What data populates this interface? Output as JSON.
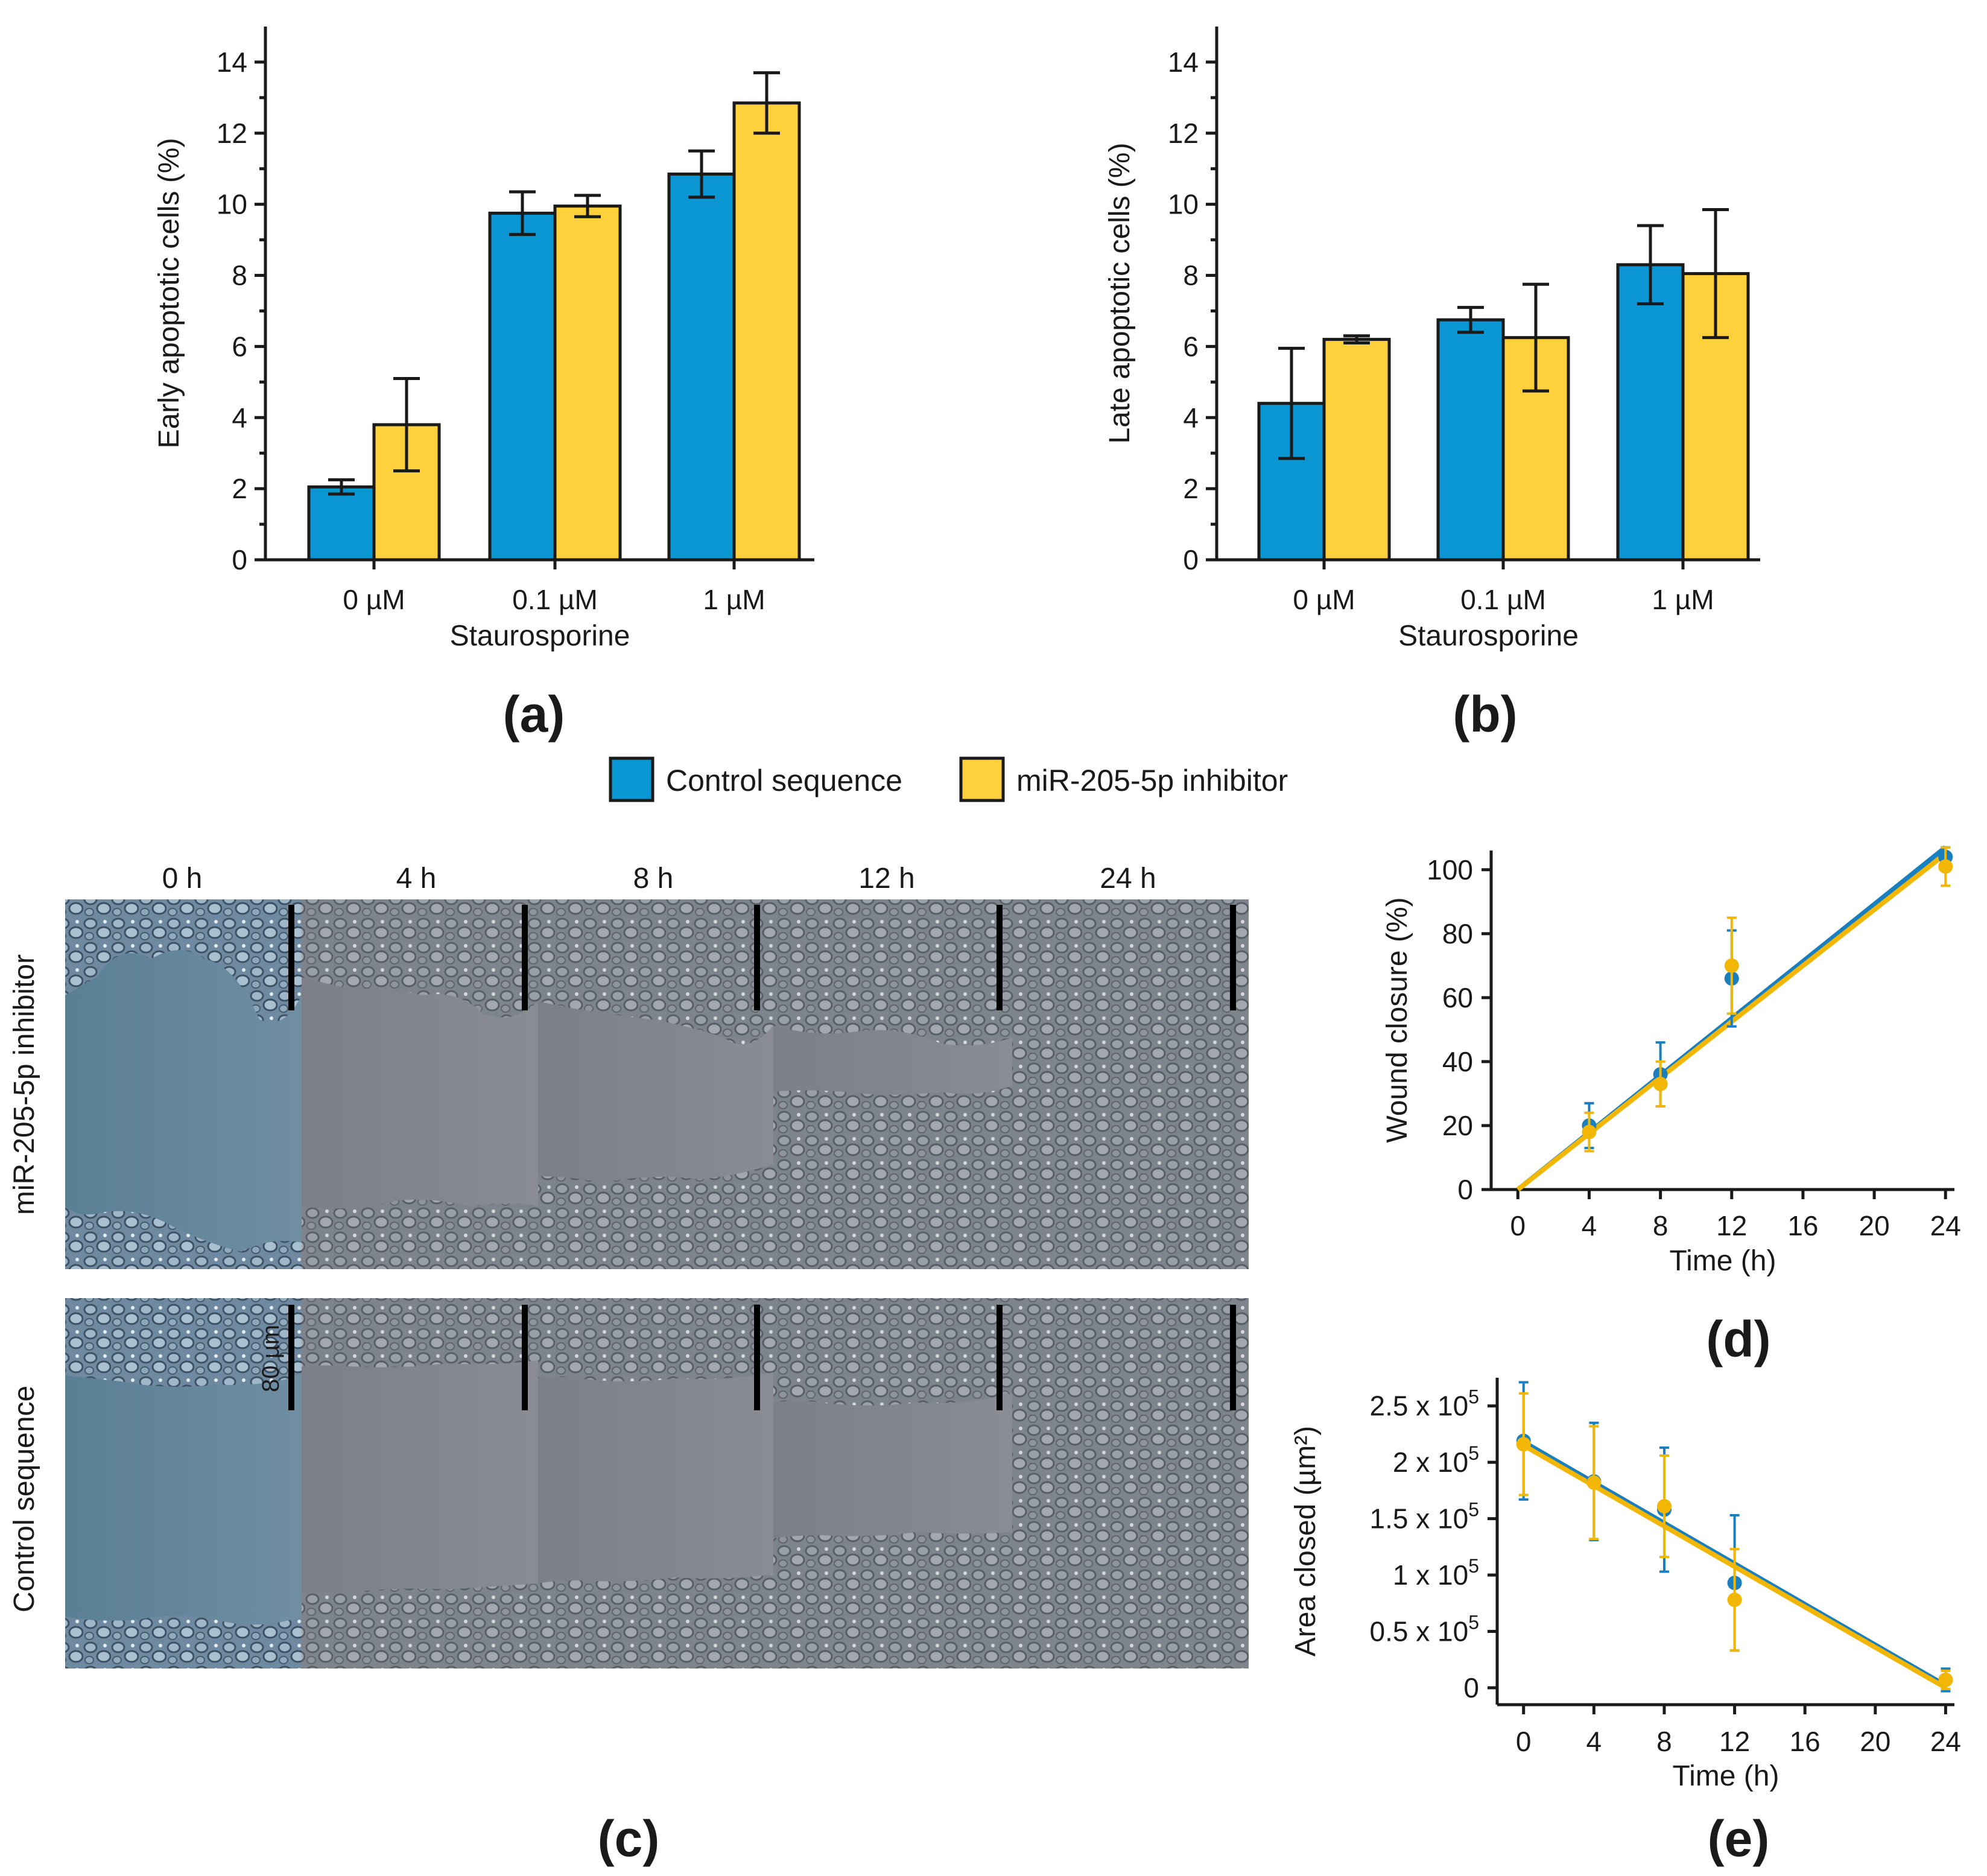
{
  "colors": {
    "control": "#0a96d2",
    "inhibitor": "#fdd03c",
    "control_line": "#1a7fbf",
    "inhibitor_line": "#f2b705"
  },
  "legend": {
    "control": "Control sequence",
    "inhibitor": "miR-205-5p inhibitor"
  },
  "panel_labels": {
    "a": "(a)",
    "b": "(b)",
    "c": "(c)",
    "d": "(d)",
    "e": "(e)"
  },
  "micrographs": {
    "time_labels": [
      "0 h",
      "4 h",
      "8 h",
      "12 h",
      "24 h"
    ],
    "row_labels": [
      "miR-205-5p inhibitor",
      "Control sequence"
    ],
    "scale_bar": "80 µm"
  },
  "chart_data": [
    {
      "id": "a",
      "type": "bar",
      "ylabel": "Early apoptotic cells (%)",
      "xlabel": "Staurosporine",
      "categories": [
        "0 µM",
        "0.1 µM",
        "1 µM"
      ],
      "ylim": [
        0,
        15
      ],
      "yticks": [
        0,
        2,
        4,
        6,
        8,
        10,
        12,
        14
      ],
      "series": [
        {
          "name": "Control sequence",
          "values": [
            2.05,
            9.75,
            10.85
          ],
          "errors": [
            0.2,
            0.6,
            0.65
          ]
        },
        {
          "name": "miR-205-5p inhibitor",
          "values": [
            3.8,
            9.95,
            12.85
          ],
          "errors": [
            1.3,
            0.3,
            0.85
          ]
        }
      ]
    },
    {
      "id": "b",
      "type": "bar",
      "ylabel": "Late apoptotic cells (%)",
      "xlabel": "Staurosporine",
      "categories": [
        "0 µM",
        "0.1 µM",
        "1 µM"
      ],
      "ylim": [
        0,
        15
      ],
      "yticks": [
        0,
        2,
        4,
        6,
        8,
        10,
        12,
        14
      ],
      "series": [
        {
          "name": "Control sequence",
          "values": [
            4.4,
            6.75,
            8.3
          ],
          "errors": [
            1.55,
            0.35,
            1.1
          ]
        },
        {
          "name": "miR-205-5p inhibitor",
          "values": [
            6.2,
            6.25,
            8.05
          ],
          "errors": [
            0.1,
            1.5,
            1.8
          ]
        }
      ]
    },
    {
      "id": "d",
      "type": "scatter",
      "ylabel": "Wound closure (%)",
      "xlabel": "Time (h)",
      "xlim": [
        -1.5,
        24.5
      ],
      "ylim": [
        0,
        106
      ],
      "xticks": [
        0,
        4,
        8,
        12,
        16,
        20,
        24
      ],
      "yticks": [
        0,
        20,
        40,
        60,
        80,
        100
      ],
      "yticklabels": [
        "0",
        "20",
        "40",
        "60",
        "80",
        "100"
      ],
      "series": [
        {
          "name": "Control sequence",
          "x": [
            4,
            8,
            12,
            24
          ],
          "y": [
            20,
            36,
            66,
            104
          ],
          "errors": [
            7,
            10,
            15,
            3
          ],
          "fit": [
            [
              0,
              0
            ],
            [
              24,
              107
            ]
          ]
        },
        {
          "name": "miR-205-5p inhibitor",
          "x": [
            4,
            8,
            12,
            24
          ],
          "y": [
            18,
            33,
            70,
            101
          ],
          "errors": [
            6,
            7,
            15,
            6
          ],
          "fit": [
            [
              0,
              0
            ],
            [
              24,
              105
            ]
          ]
        }
      ]
    },
    {
      "id": "e",
      "type": "scatter",
      "ylabel": "Area closed (µm²)",
      "xlabel": "Time (h)",
      "xlim": [
        -1.5,
        24.5
      ],
      "ylim": [
        -0.15,
        2.75
      ],
      "xticks": [
        0,
        4,
        8,
        12,
        16,
        20,
        24
      ],
      "yticks": [
        0,
        0.5,
        1,
        1.5,
        2,
        2.5
      ],
      "ytick_mantissas": [
        "0",
        "0.5 x 10",
        "1 x 10",
        "1.5 x 10",
        "2 x 10",
        "2.5 x 10"
      ],
      "ytick_exponent": "5",
      "series": [
        {
          "name": "Control sequence",
          "x": [
            0,
            4,
            8,
            12,
            24
          ],
          "y": [
            2.19,
            1.83,
            1.58,
            0.93,
            0.07
          ],
          "errors": [
            0.52,
            0.52,
            0.55,
            0.6,
            0.1
          ],
          "fit": [
            [
              0,
              2.18
            ],
            [
              24,
              0.02
            ]
          ]
        },
        {
          "name": "miR-205-5p inhibitor",
          "x": [
            0,
            4,
            8,
            12,
            24
          ],
          "y": [
            2.16,
            1.82,
            1.61,
            0.78,
            0.07
          ],
          "errors": [
            0.45,
            0.5,
            0.45,
            0.45,
            0.08
          ],
          "fit": [
            [
              0,
              2.15
            ],
            [
              24,
              0.0
            ]
          ]
        }
      ]
    }
  ]
}
